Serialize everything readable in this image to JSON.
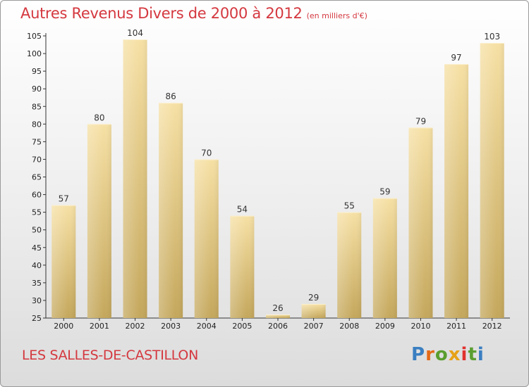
{
  "title": "Autres Revenus Divers de 2000 à 2012",
  "subtitle": "(en milliers d'€)",
  "place": "LES SALLES-DE-CASTILLON",
  "logo": {
    "letters": [
      "P",
      "r",
      "o",
      "x",
      "i",
      "t",
      "i"
    ],
    "colors": [
      "#3a7fc1",
      "#e46a17",
      "#5a9e2f",
      "#e6a117",
      "#e0322e",
      "#5a9e2f",
      "#3a7fc1"
    ]
  },
  "colors": {
    "accent": "#d4383f",
    "bar_light": "#f4dc9c",
    "bar_dark": "#c8aa5e"
  },
  "chart_data": {
    "type": "bar",
    "categories": [
      "2000",
      "2001",
      "2002",
      "2003",
      "2004",
      "2005",
      "2006",
      "2007",
      "2008",
      "2009",
      "2010",
      "2011",
      "2012"
    ],
    "values": [
      57,
      80,
      104,
      86,
      70,
      54,
      26,
      29,
      55,
      59,
      79,
      97,
      103
    ],
    "yticks": [
      25,
      30,
      35,
      40,
      45,
      50,
      55,
      60,
      65,
      70,
      75,
      80,
      85,
      90,
      95,
      100,
      105
    ],
    "ylim": [
      25,
      105
    ],
    "grid": false,
    "xlabel": "",
    "ylabel": ""
  }
}
